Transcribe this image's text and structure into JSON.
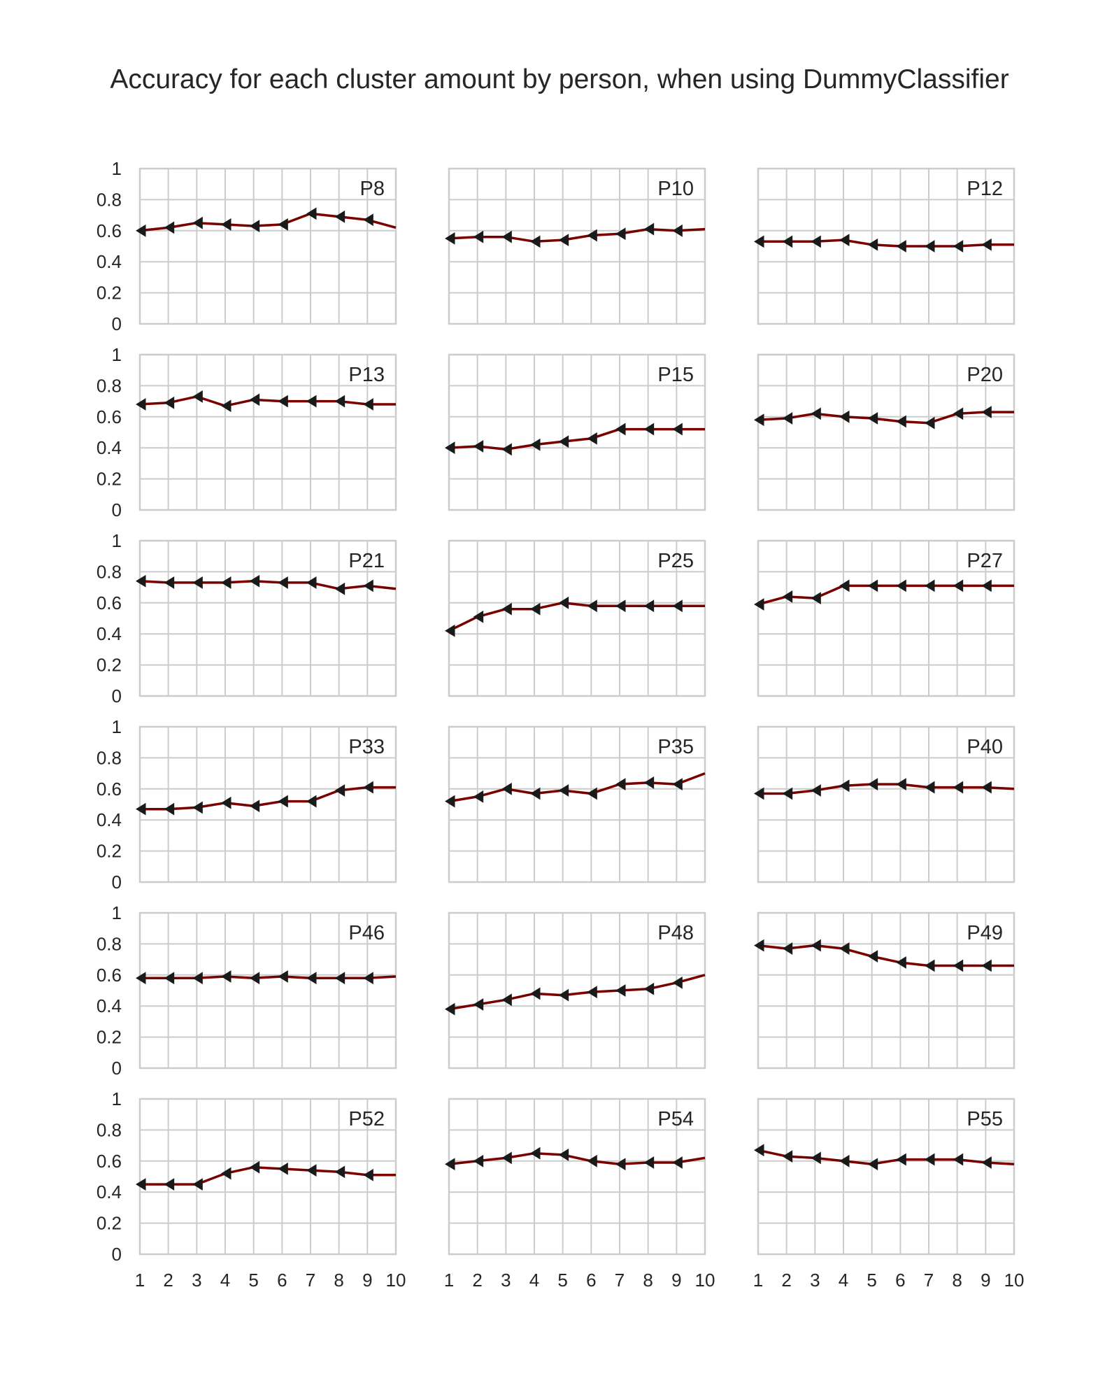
{
  "title": "Accuracy for each cluster amount by person, when using DummyClassifier",
  "chart_data": {
    "type": "line",
    "title": "Accuracy for each cluster amount by person, when using DummyClassifier",
    "layout": "6 rows x 3 columns, shared axes",
    "x": [
      1,
      2,
      3,
      4,
      5,
      6,
      7,
      8,
      9,
      10
    ],
    "x_ticks": [
      "1",
      "2",
      "3",
      "4",
      "5",
      "6",
      "7",
      "8",
      "9",
      "10"
    ],
    "xlim": [
      1,
      10
    ],
    "y_ticks": [
      "0",
      "0.2",
      "0.4",
      "0.6",
      "0.8",
      "1"
    ],
    "ylim": [
      0,
      1
    ],
    "grid": true,
    "line_color": "#7a0000",
    "marker_color": "#1a1a1a",
    "marker": "left-pointing triangle",
    "panels": [
      {
        "label": "P8",
        "values": [
          0.6,
          0.62,
          0.65,
          0.64,
          0.63,
          0.64,
          0.71,
          0.69,
          0.67,
          0.62
        ]
      },
      {
        "label": "P10",
        "values": [
          0.55,
          0.56,
          0.56,
          0.53,
          0.54,
          0.57,
          0.58,
          0.61,
          0.6,
          0.61
        ]
      },
      {
        "label": "P12",
        "values": [
          0.53,
          0.53,
          0.53,
          0.54,
          0.51,
          0.5,
          0.5,
          0.5,
          0.51,
          0.51
        ]
      },
      {
        "label": "P13",
        "values": [
          0.68,
          0.69,
          0.73,
          0.67,
          0.71,
          0.7,
          0.7,
          0.7,
          0.68,
          0.68
        ]
      },
      {
        "label": "P15",
        "values": [
          0.4,
          0.41,
          0.39,
          0.42,
          0.44,
          0.46,
          0.52,
          0.52,
          0.52,
          0.52
        ]
      },
      {
        "label": "P20",
        "values": [
          0.58,
          0.59,
          0.62,
          0.6,
          0.59,
          0.57,
          0.56,
          0.62,
          0.63,
          0.63
        ]
      },
      {
        "label": "P21",
        "values": [
          0.74,
          0.73,
          0.73,
          0.73,
          0.74,
          0.73,
          0.73,
          0.69,
          0.71,
          0.69
        ]
      },
      {
        "label": "P25",
        "values": [
          0.42,
          0.51,
          0.56,
          0.56,
          0.6,
          0.58,
          0.58,
          0.58,
          0.58,
          0.58
        ]
      },
      {
        "label": "P27",
        "values": [
          0.59,
          0.64,
          0.63,
          0.71,
          0.71,
          0.71,
          0.71,
          0.71,
          0.71,
          0.71
        ]
      },
      {
        "label": "P33",
        "values": [
          0.47,
          0.47,
          0.48,
          0.51,
          0.49,
          0.52,
          0.52,
          0.59,
          0.61,
          0.61
        ]
      },
      {
        "label": "P35",
        "values": [
          0.52,
          0.55,
          0.6,
          0.57,
          0.59,
          0.57,
          0.63,
          0.64,
          0.63,
          0.7
        ]
      },
      {
        "label": "P40",
        "values": [
          0.57,
          0.57,
          0.59,
          0.62,
          0.63,
          0.63,
          0.61,
          0.61,
          0.61,
          0.6
        ]
      },
      {
        "label": "P46",
        "values": [
          0.58,
          0.58,
          0.58,
          0.59,
          0.58,
          0.59,
          0.58,
          0.58,
          0.58,
          0.59
        ]
      },
      {
        "label": "P48",
        "values": [
          0.38,
          0.41,
          0.44,
          0.48,
          0.47,
          0.49,
          0.5,
          0.51,
          0.55,
          0.6
        ]
      },
      {
        "label": "P49",
        "values": [
          0.79,
          0.77,
          0.79,
          0.77,
          0.72,
          0.68,
          0.66,
          0.66,
          0.66,
          0.66
        ]
      },
      {
        "label": "P52",
        "values": [
          0.45,
          0.45,
          0.45,
          0.52,
          0.56,
          0.55,
          0.54,
          0.53,
          0.51,
          0.51
        ]
      },
      {
        "label": "P54",
        "values": [
          0.58,
          0.6,
          0.62,
          0.65,
          0.64,
          0.6,
          0.58,
          0.59,
          0.59,
          0.62
        ]
      },
      {
        "label": "P55",
        "values": [
          0.67,
          0.63,
          0.62,
          0.6,
          0.58,
          0.61,
          0.61,
          0.61,
          0.59,
          0.58
        ]
      }
    ]
  }
}
